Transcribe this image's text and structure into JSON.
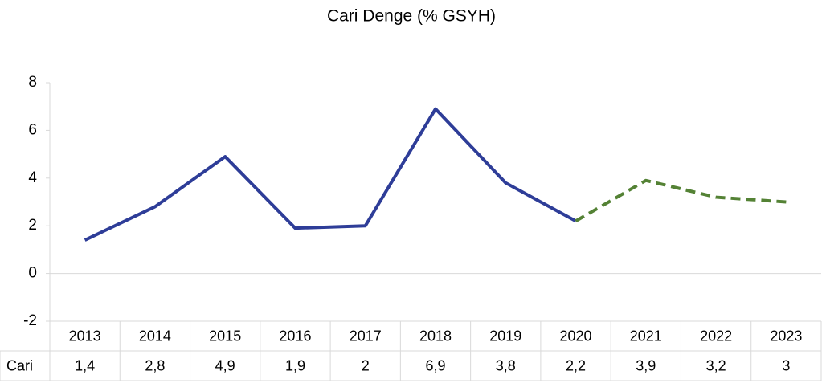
{
  "chart_data": {
    "type": "line",
    "title": "Cari Denge (% GSYH)",
    "categories": [
      "2013",
      "2014",
      "2015",
      "2016",
      "2017",
      "2018",
      "2019",
      "2020",
      "2021",
      "2022",
      "2023"
    ],
    "series": [
      {
        "name": "Cari",
        "color": "#2e3d98",
        "forecast_color": "#548235",
        "forecast_from": 7,
        "values": [
          1.4,
          2.8,
          4.9,
          1.9,
          2,
          6.9,
          3.8,
          2.2,
          3.9,
          3.2,
          3
        ],
        "value_labels": [
          "1,4",
          "2,8",
          "4,9",
          "1,9",
          "2",
          "6,9",
          "3,8",
          "2,2",
          "3,9",
          "3,2",
          "3"
        ]
      }
    ],
    "ylim": [
      -2,
      8
    ],
    "yticks": [
      -2,
      0,
      2,
      4,
      6,
      8
    ],
    "grid": false,
    "data_table": true
  }
}
